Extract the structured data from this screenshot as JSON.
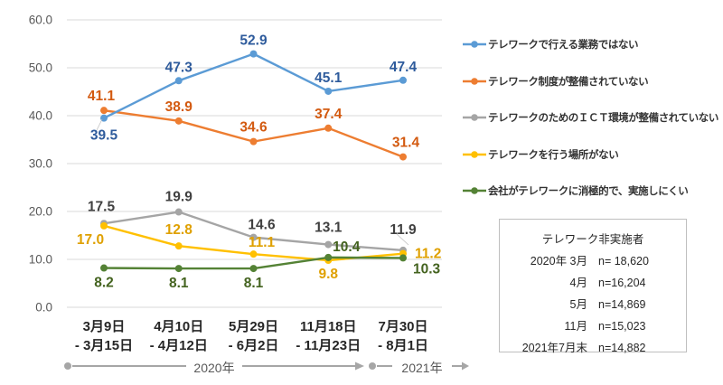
{
  "chart_data": {
    "type": "line",
    "title": "",
    "xlabel": "",
    "ylabel": "",
    "ylim": [
      0,
      60
    ],
    "ytick_interval": 10,
    "yticks": [
      "0.0",
      "10.0",
      "20.0",
      "30.0",
      "40.0",
      "50.0",
      "60.0"
    ],
    "grid": true,
    "legend_position": "right",
    "categories": [
      {
        "line1": "3月9日",
        "line2": "- 3月15日"
      },
      {
        "line1": "4月10日",
        "line2": "- 4月12日"
      },
      {
        "line1": "5月29日",
        "line2": "- 6月2日"
      },
      {
        "line1": "11月18日",
        "line2": "- 11月23日"
      },
      {
        "line1": "7月30日",
        "line2": "- 8月1日"
      }
    ],
    "series": [
      {
        "name": "テレワークで行える業務ではない",
        "color": "#5B9BD5",
        "label_color": "#2E5B9C",
        "values": [
          39.5,
          47.3,
          52.9,
          45.1,
          47.4
        ]
      },
      {
        "name": "テレワーク制度が整備されていない",
        "color": "#ED7D31",
        "label_color": "#D35A10",
        "values": [
          41.1,
          38.9,
          34.6,
          37.4,
          31.4
        ]
      },
      {
        "name": "テレワークのためのＩＣＴ環境が整備されていない",
        "color": "#A5A5A5",
        "label_color": "#404040",
        "values": [
          17.5,
          19.9,
          14.6,
          13.1,
          11.9
        ]
      },
      {
        "name": "テレワークを行う場所がない",
        "color": "#FFC000",
        "label_color": "#DFA000",
        "values": [
          17.0,
          12.8,
          11.1,
          9.8,
          11.2
        ]
      },
      {
        "name": "会社がテレワークに消極的で、実施しにくい",
        "color": "#548235",
        "label_color": "#44631F",
        "values": [
          8.2,
          8.1,
          8.1,
          10.4,
          10.3
        ]
      }
    ]
  },
  "timeline": {
    "left_label": "2020年",
    "right_label": "2021年",
    "line_color": "#A6A6A6"
  },
  "note_box": {
    "title": "テレワーク非実施者",
    "rows": [
      {
        "period": "2020年 3月",
        "n": "n= 18,620"
      },
      {
        "period": "4月",
        "n": "n=16,204"
      },
      {
        "period": "5月",
        "n": "n=14,869"
      },
      {
        "period": "11月",
        "n": "n=15,023"
      },
      {
        "period": "2021年7月末",
        "n": "n=14,882"
      }
    ]
  }
}
